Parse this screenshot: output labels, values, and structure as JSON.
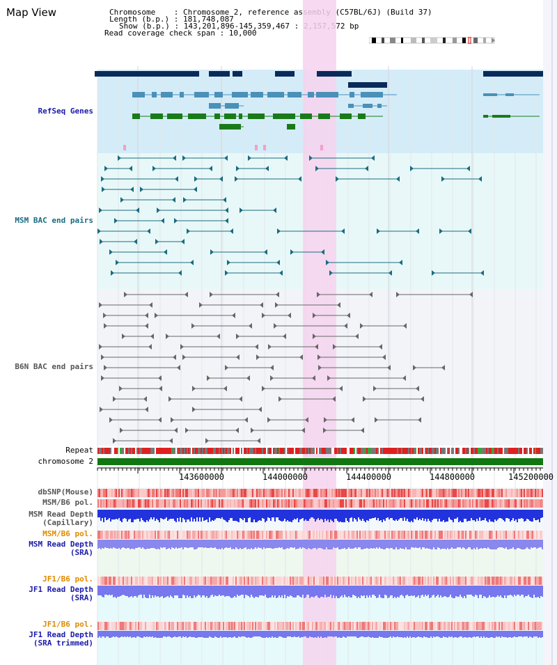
{
  "app_title": "Map View",
  "info": {
    "chromosome": "Chromosome    : Chromosome 2, reference assembly (C57BL/6J) (Build 37)",
    "length": "Length (b.p.) : 181,748,087",
    "show": "Show (b.p.) : 143,201,896-145,359,467 : 2,157,572 bp",
    "coverage": "Read coverage check span : 10,000"
  },
  "tracks": {
    "refseq": {
      "label": "RefSeq Genes",
      "color": "#1a1aaa"
    },
    "msm_bac": {
      "label": "MSM BAC end pairs",
      "color": "#1a6b80"
    },
    "b6n_bac": {
      "label": "B6N BAC end pairs",
      "color": "#555555"
    },
    "repeat": {
      "label": "Repeat",
      "color": "#000000"
    },
    "chromosome": {
      "label": "chromosome 2",
      "color": "#000000"
    },
    "dbsnp": {
      "label": "dbSNP(Mouse)",
      "color": "#555555"
    },
    "msm_b6_pol": {
      "label": "MSM/B6 pol.",
      "color": "#555555"
    },
    "msm_depth_cap": {
      "label1": "MSM Read Depth",
      "label2": "(Capillary)",
      "color": "#555555"
    },
    "msm_b6_pol2": {
      "label": "MSM/B6 pol.",
      "color": "#e08a00"
    },
    "msm_depth_sra": {
      "label1": "MSM Read Depth",
      "label2": "(SRA)",
      "color": "#1a1aaa"
    },
    "jf1_b6_pol": {
      "label": "JF1/B6 pol.",
      "color": "#e08a00"
    },
    "jf1_depth_sra": {
      "label1": "JF1 Read Depth",
      "label2": "(SRA)",
      "color": "#1a1aaa"
    },
    "jf1_b6_pol2": {
      "label": "JF1/B6 pol.",
      "color": "#e08a00"
    },
    "jf1_depth_trim": {
      "label1": "JF1 Read Depth",
      "label2": "(SRA trimmed)",
      "color": "#1a1aaa"
    }
  },
  "axis": {
    "ticks": [
      "143600000",
      "144000000",
      "144400000",
      "144800000",
      "145200000"
    ]
  },
  "colors": {
    "highlight": "#f6d3ee",
    "refseq_bg": "#d4ecf8",
    "msm_bg": "#e8f8f8",
    "b6n_bg": "#f2f4f8",
    "gene_dark": "#0a2a5a",
    "gene_mid": "#4a90b8",
    "gene_green": "#1a7a1a",
    "chromosome_bar": "#117711"
  }
}
